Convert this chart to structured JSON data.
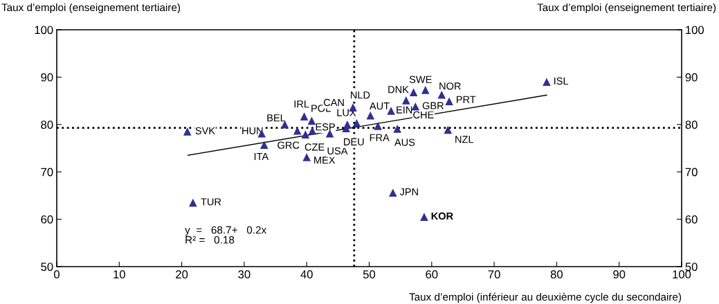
{
  "chart_data": {
    "type": "scatter",
    "xlabel": "Taux d’emploi (inférieur au deuxième cycle du secondaire)",
    "ylabel": "Taux d’emploi (enseignement tertiaire)",
    "y2label": "Taux d’emploi (enseignement tertiaire)",
    "xlim": [
      0,
      100
    ],
    "xticks": [
      0,
      10,
      20,
      30,
      40,
      50,
      60,
      70,
      80,
      90,
      100
    ],
    "ylim": [
      50,
      100
    ],
    "yticks": [
      50,
      60,
      70,
      80,
      90,
      100
    ],
    "y2lim": [
      50,
      100
    ],
    "y2ticks": [
      50,
      60,
      70,
      80,
      90,
      100
    ],
    "marker": "triangle",
    "grid": false,
    "series": [
      {
        "color": "#2e3192",
        "x": [
          20.9,
          21.8,
          32.8,
          33.2,
          36.5,
          39.6,
          40.8,
          40.9,
          38.5,
          39.8,
          40.0,
          43.7,
          46.3,
          46.5,
          48.0,
          47.4,
          50.2,
          53.5,
          51.4,
          54.5,
          55.9,
          57.1,
          57.4,
          59.0,
          61.6,
          62.8,
          53.8,
          58.8,
          62.6,
          78.4
        ],
        "values": [
          78.5,
          63.5,
          78.1,
          75.7,
          80.0,
          81.7,
          80.8,
          78.7,
          78.7,
          77.9,
          73.1,
          78.1,
          79.2,
          80.0,
          80.3,
          83.6,
          81.9,
          82.9,
          79.7,
          79.1,
          85.1,
          86.8,
          83.8,
          87.3,
          86.3,
          84.9,
          65.6,
          60.5,
          78.9,
          89.0
        ]
      },
      {
        "type": "line",
        "marker": "none",
        "color": "#000000",
        "x": [
          21.0,
          78.4
        ],
        "values": [
          73.5,
          86.2
        ]
      }
    ],
    "ref_lines": [
      {
        "axis": "x",
        "value": 47.6,
        "line_style": "dotted",
        "color": "#000000"
      },
      {
        "axis": "y",
        "value": 79.3,
        "line_style": "dotted",
        "color": "#000000"
      }
    ],
    "annotations": [
      {
        "text": "SVK",
        "x": 20.9,
        "y": 78.5
      },
      {
        "text": "TUR",
        "x": 21.8,
        "y": 63.5
      },
      {
        "text": "HUN",
        "x": 32.8,
        "y": 78.1
      },
      {
        "text": "ITA",
        "x": 33.2,
        "y": 75.7
      },
      {
        "text": "BEL",
        "x": 36.5,
        "y": 80.0
      },
      {
        "text": "IRL",
        "x": 39.6,
        "y": 81.7
      },
      {
        "text": "POL",
        "x": 40.8,
        "y": 80.8
      },
      {
        "text": "ESP",
        "x": 40.9,
        "y": 78.7
      },
      {
        "text": "GRC",
        "x": 38.5,
        "y": 78.7
      },
      {
        "text": "CZE",
        "x": 39.8,
        "y": 77.9
      },
      {
        "text": "MEX",
        "x": 40.0,
        "y": 73.1
      },
      {
        "text": "USA",
        "x": 43.7,
        "y": 78.1
      },
      {
        "text": "DEU",
        "x": 46.3,
        "y": 79.2
      },
      {
        "text": "CAN",
        "x": 46.5,
        "y": 80.0
      },
      {
        "text": "LUX",
        "x": 48.0,
        "y": 80.3
      },
      {
        "text": "NLD",
        "x": 47.4,
        "y": 83.6
      },
      {
        "text": "AUT",
        "x": 50.2,
        "y": 81.9
      },
      {
        "text": "EIN",
        "x": 53.5,
        "y": 82.9
      },
      {
        "text": "FRA",
        "x": 51.4,
        "y": 79.7
      },
      {
        "text": "AUS",
        "x": 54.5,
        "y": 79.1
      },
      {
        "text": "CHE",
        "x": 55.9,
        "y": 85.1
      },
      {
        "text": "DNK",
        "x": 57.1,
        "y": 86.8
      },
      {
        "text": "GBR",
        "x": 57.4,
        "y": 83.8
      },
      {
        "text": "SWE",
        "x": 59.0,
        "y": 87.3
      },
      {
        "text": "NOR",
        "x": 61.6,
        "y": 86.3
      },
      {
        "text": "PRT",
        "x": 62.8,
        "y": 84.9
      },
      {
        "text": "JPN",
        "x": 53.8,
        "y": 65.6
      },
      {
        "text": "KOR",
        "x": 58.8,
        "y": 60.5
      },
      {
        "text": "NZL",
        "x": 62.6,
        "y": 78.9
      },
      {
        "text": "ISL",
        "x": 78.4,
        "y": 89.0
      },
      "y  =   68.7+   0.2x\nR² =   0.18"
    ]
  }
}
